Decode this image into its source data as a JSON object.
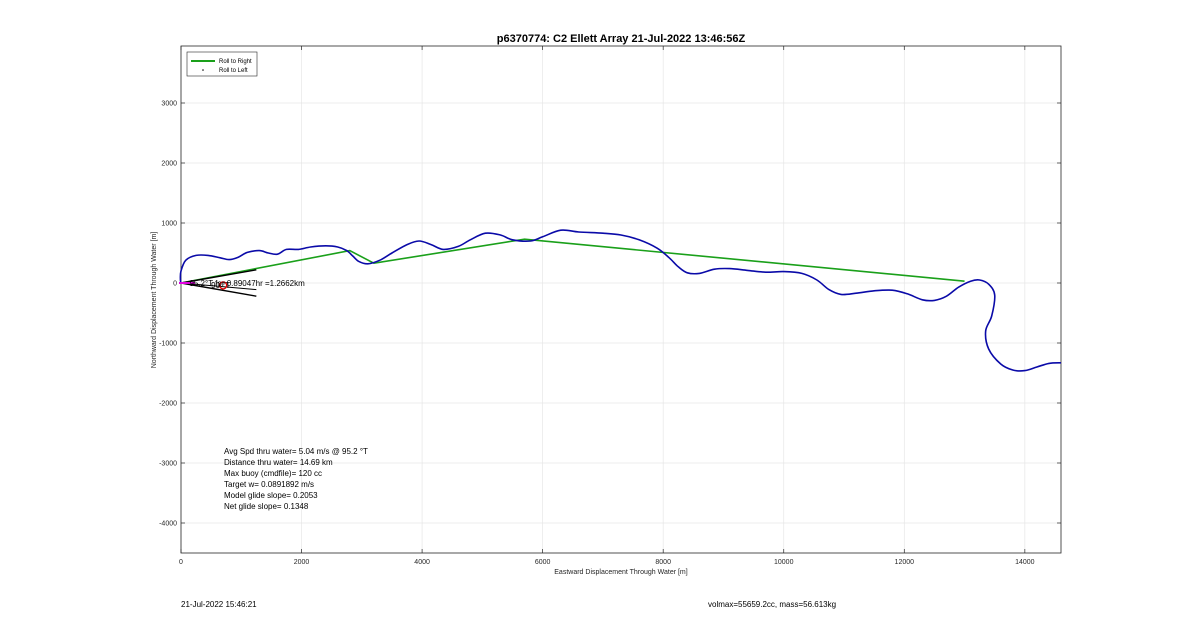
{
  "chart_data": {
    "type": "line",
    "title": "p6370774: C2 Ellett Array 21-Jul-2022 13:46:56Z",
    "xlabel": "Eastward Displacement Through Water [m]",
    "ylabel": "Northward Displacement Through Water [m]",
    "xlim": [
      0,
      14600
    ],
    "ylim": [
      -4500,
      3950
    ],
    "xticks": [
      0,
      2000,
      4000,
      6000,
      8000,
      10000,
      12000,
      14000
    ],
    "yticks": [
      -4000,
      -3000,
      -2000,
      -1000,
      0,
      1000,
      2000,
      3000
    ],
    "grid": true,
    "legend_position": "top-left",
    "series": [
      {
        "name": "Roll to Right",
        "color": "#1aa01a",
        "points": [
          [
            0,
            0
          ],
          [
            2800,
            540
          ],
          [
            3200,
            330
          ],
          [
            5700,
            730
          ],
          [
            13000,
            30
          ]
        ]
      },
      {
        "name": "Roll to Left",
        "color": "#000000",
        "points": []
      },
      {
        "color": "#0a0aa8",
        "points": [
          [
            0,
            0
          ],
          [
            -10,
            60
          ],
          [
            0,
            200
          ],
          [
            80,
            380
          ],
          [
            250,
            460
          ],
          [
            450,
            460
          ],
          [
            650,
            420
          ],
          [
            800,
            390
          ],
          [
            950,
            430
          ],
          [
            1100,
            510
          ],
          [
            1300,
            540
          ],
          [
            1450,
            500
          ],
          [
            1600,
            480
          ],
          [
            1750,
            560
          ],
          [
            1950,
            560
          ],
          [
            2150,
            600
          ],
          [
            2400,
            620
          ],
          [
            2600,
            600
          ],
          [
            2750,
            540
          ],
          [
            2850,
            450
          ],
          [
            2950,
            360
          ],
          [
            3100,
            320
          ],
          [
            3300,
            380
          ],
          [
            3500,
            500
          ],
          [
            3750,
            640
          ],
          [
            3950,
            700
          ],
          [
            4150,
            640
          ],
          [
            4350,
            560
          ],
          [
            4600,
            610
          ],
          [
            4800,
            720
          ],
          [
            5050,
            830
          ],
          [
            5300,
            800
          ],
          [
            5500,
            720
          ],
          [
            5800,
            700
          ],
          [
            6000,
            770
          ],
          [
            6300,
            880
          ],
          [
            6600,
            850
          ],
          [
            7000,
            830
          ],
          [
            7300,
            800
          ],
          [
            7600,
            720
          ],
          [
            7900,
            580
          ],
          [
            8100,
            420
          ],
          [
            8250,
            270
          ],
          [
            8400,
            170
          ],
          [
            8600,
            160
          ],
          [
            8850,
            230
          ],
          [
            9100,
            240
          ],
          [
            9400,
            210
          ],
          [
            9700,
            180
          ],
          [
            10000,
            190
          ],
          [
            10300,
            160
          ],
          [
            10550,
            50
          ],
          [
            10750,
            -110
          ],
          [
            10950,
            -190
          ],
          [
            11200,
            -170
          ],
          [
            11500,
            -130
          ],
          [
            11800,
            -120
          ],
          [
            12050,
            -180
          ],
          [
            12300,
            -280
          ],
          [
            12500,
            -290
          ],
          [
            12700,
            -220
          ],
          [
            12900,
            -70
          ],
          [
            13100,
            30
          ],
          [
            13250,
            50
          ],
          [
            13400,
            -20
          ],
          [
            13500,
            -200
          ],
          [
            13450,
            -550
          ],
          [
            13350,
            -800
          ],
          [
            13400,
            -1100
          ],
          [
            13600,
            -1350
          ],
          [
            13800,
            -1450
          ],
          [
            14000,
            -1460
          ],
          [
            14200,
            -1400
          ],
          [
            14400,
            -1340
          ],
          [
            14600,
            -1330
          ]
        ]
      }
    ],
    "annotations": {
      "cone_label": "95.2°T for 0.89047hr =1.2662km",
      "cone_label_tail": "90 °T"
    },
    "stats": [
      "Avg Spd thru water=  5.04 m/s @  95.2 °T",
      "Distance thru water= 14.69 km",
      "Max buoy (cmdfile)= 120 cc",
      "Target w= 0.0891892 m/s",
      "Model glide slope= 0.2053",
      "Net glide slope= 0.1348"
    ]
  },
  "footer": {
    "left": "21-Jul-2022 15:46:21",
    "right": "volmax=55659.2cc, mass=56.613kg"
  }
}
